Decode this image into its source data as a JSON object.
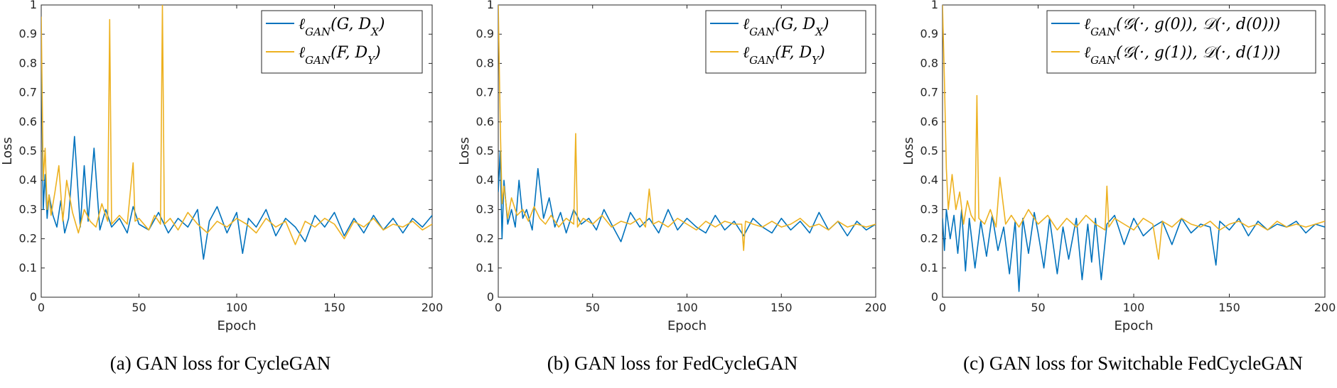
{
  "chart_data": [
    {
      "type": "line",
      "caption": "(a) GAN loss for CycleGAN",
      "xlabel": "Epoch",
      "ylabel": "Loss",
      "xlim": [
        0,
        200
      ],
      "ylim": [
        0,
        1
      ],
      "xticks": [
        0,
        50,
        100,
        150,
        200
      ],
      "yticks": [
        0,
        0.1,
        0.2,
        0.3,
        0.4,
        0.5,
        0.6,
        0.7,
        0.8,
        0.9,
        1
      ],
      "legend_position": "top-right",
      "series": [
        {
          "name": "ℓGAN(G, DX)",
          "color": "#0072BD",
          "x": [
            0,
            1,
            2,
            3,
            4,
            6,
            8,
            10,
            12,
            14,
            17,
            20,
            22,
            24,
            27,
            30,
            33,
            36,
            40,
            44,
            47,
            50,
            55,
            60,
            65,
            70,
            75,
            80,
            83,
            86,
            90,
            95,
            100,
            103,
            106,
            110,
            115,
            120,
            125,
            130,
            135,
            140,
            145,
            150,
            155,
            160,
            165,
            170,
            175,
            180,
            185,
            190,
            195,
            200
          ],
          "y": [
            0.88,
            0.3,
            0.42,
            0.27,
            0.35,
            0.28,
            0.24,
            0.33,
            0.22,
            0.27,
            0.55,
            0.24,
            0.45,
            0.26,
            0.51,
            0.23,
            0.3,
            0.24,
            0.27,
            0.22,
            0.31,
            0.25,
            0.23,
            0.29,
            0.22,
            0.27,
            0.24,
            0.3,
            0.13,
            0.26,
            0.31,
            0.22,
            0.29,
            0.15,
            0.27,
            0.24,
            0.3,
            0.21,
            0.27,
            0.24,
            0.19,
            0.28,
            0.24,
            0.29,
            0.21,
            0.27,
            0.22,
            0.28,
            0.23,
            0.27,
            0.22,
            0.27,
            0.24,
            0.28
          ]
        },
        {
          "name": "ℓGAN(F, DY)",
          "color": "#EDB120",
          "x": [
            0,
            1,
            2,
            3,
            4,
            5,
            7,
            9,
            11,
            13,
            16,
            19,
            22,
            25,
            28,
            31,
            34,
            35,
            36,
            40,
            44,
            47,
            48,
            50,
            55,
            58,
            61,
            62,
            63,
            66,
            70,
            75,
            80,
            85,
            90,
            95,
            100,
            105,
            110,
            115,
            120,
            125,
            130,
            135,
            140,
            145,
            150,
            155,
            160,
            165,
            170,
            175,
            180,
            185,
            190,
            195,
            200
          ],
          "y": [
            0.96,
            0.4,
            0.51,
            0.3,
            0.35,
            0.28,
            0.36,
            0.45,
            0.26,
            0.4,
            0.29,
            0.22,
            0.3,
            0.26,
            0.24,
            0.32,
            0.26,
            0.95,
            0.25,
            0.28,
            0.25,
            0.46,
            0.26,
            0.27,
            0.23,
            0.28,
            0.25,
            1.0,
            0.25,
            0.27,
            0.23,
            0.29,
            0.25,
            0.22,
            0.26,
            0.24,
            0.27,
            0.25,
            0.22,
            0.27,
            0.24,
            0.26,
            0.18,
            0.26,
            0.24,
            0.27,
            0.25,
            0.2,
            0.26,
            0.24,
            0.27,
            0.23,
            0.25,
            0.24,
            0.26,
            0.23,
            0.25
          ]
        }
      ]
    },
    {
      "type": "line",
      "caption": "(b) GAN loss for FedCycleGAN",
      "xlabel": "Epoch",
      "ylabel": "Loss",
      "xlim": [
        0,
        200
      ],
      "ylim": [
        0,
        1
      ],
      "xticks": [
        0,
        50,
        100,
        150,
        200
      ],
      "yticks": [
        0,
        0.1,
        0.2,
        0.3,
        0.4,
        0.5,
        0.6,
        0.7,
        0.8,
        0.9,
        1
      ],
      "legend_position": "top-right",
      "series": [
        {
          "name": "ℓGAN(G, DX)",
          "color": "#0072BD",
          "x": [
            0,
            1,
            2,
            3,
            5,
            7,
            9,
            11,
            13,
            15,
            18,
            21,
            24,
            27,
            30,
            33,
            36,
            40,
            44,
            48,
            52,
            56,
            60,
            65,
            70,
            75,
            80,
            85,
            90,
            95,
            100,
            105,
            110,
            115,
            120,
            125,
            130,
            135,
            140,
            145,
            150,
            155,
            160,
            165,
            170,
            175,
            180,
            185,
            190,
            195,
            200
          ],
          "y": [
            0.36,
            0.5,
            0.2,
            0.4,
            0.25,
            0.3,
            0.24,
            0.4,
            0.27,
            0.3,
            0.23,
            0.44,
            0.27,
            0.34,
            0.24,
            0.29,
            0.22,
            0.3,
            0.25,
            0.27,
            0.23,
            0.3,
            0.25,
            0.19,
            0.29,
            0.24,
            0.27,
            0.22,
            0.3,
            0.23,
            0.27,
            0.24,
            0.22,
            0.28,
            0.23,
            0.26,
            0.21,
            0.27,
            0.24,
            0.22,
            0.27,
            0.23,
            0.26,
            0.22,
            0.29,
            0.23,
            0.26,
            0.21,
            0.26,
            0.23,
            0.25
          ]
        },
        {
          "name": "ℓGAN(F, DY)",
          "color": "#EDB120",
          "x": [
            0,
            1,
            2,
            3,
            5,
            7,
            10,
            13,
            16,
            19,
            22,
            25,
            28,
            32,
            36,
            40,
            41,
            42,
            45,
            50,
            55,
            60,
            65,
            70,
            75,
            78,
            80,
            82,
            85,
            90,
            95,
            100,
            105,
            110,
            115,
            120,
            125,
            129,
            130,
            131,
            135,
            140,
            145,
            150,
            155,
            160,
            165,
            170,
            175,
            180,
            185,
            190,
            195,
            200
          ],
          "y": [
            1.0,
            0.6,
            0.32,
            0.38,
            0.27,
            0.34,
            0.28,
            0.3,
            0.26,
            0.31,
            0.27,
            0.25,
            0.28,
            0.24,
            0.27,
            0.25,
            0.56,
            0.24,
            0.27,
            0.25,
            0.28,
            0.24,
            0.26,
            0.25,
            0.27,
            0.24,
            0.37,
            0.25,
            0.26,
            0.24,
            0.27,
            0.25,
            0.23,
            0.26,
            0.24,
            0.26,
            0.25,
            0.25,
            0.16,
            0.26,
            0.25,
            0.24,
            0.26,
            0.24,
            0.25,
            0.27,
            0.24,
            0.25,
            0.23,
            0.26,
            0.24,
            0.25,
            0.24,
            0.25
          ]
        }
      ]
    },
    {
      "type": "line",
      "caption": "(c) GAN loss for Switchable FedCycleGAN",
      "xlabel": "Epoch",
      "ylabel": "Loss",
      "xlim": [
        0,
        200
      ],
      "ylim": [
        0,
        1
      ],
      "xticks": [
        0,
        50,
        100,
        150,
        200
      ],
      "yticks": [
        0,
        0.1,
        0.2,
        0.3,
        0.4,
        0.5,
        0.6,
        0.7,
        0.8,
        0.9,
        1
      ],
      "legend_position": "top-right",
      "series": [
        {
          "name": "ℓGAN(𝒢(·, g(0)), 𝒟(·, d(0)))",
          "color": "#0072BD",
          "x": [
            0,
            1,
            2,
            4,
            6,
            8,
            10,
            12,
            14,
            17,
            20,
            23,
            26,
            29,
            32,
            35,
            38,
            40,
            42,
            45,
            48,
            50,
            53,
            56,
            60,
            63,
            66,
            70,
            73,
            76,
            78,
            80,
            83,
            86,
            90,
            95,
            100,
            105,
            110,
            115,
            120,
            125,
            130,
            135,
            140,
            143,
            145,
            150,
            155,
            160,
            165,
            170,
            175,
            180,
            185,
            190,
            195,
            200
          ],
          "y": [
            0.27,
            0.16,
            0.3,
            0.2,
            0.28,
            0.15,
            0.3,
            0.09,
            0.27,
            0.1,
            0.26,
            0.14,
            0.28,
            0.16,
            0.24,
            0.08,
            0.26,
            0.02,
            0.27,
            0.15,
            0.29,
            0.22,
            0.1,
            0.27,
            0.08,
            0.24,
            0.13,
            0.27,
            0.06,
            0.25,
            0.12,
            0.27,
            0.06,
            0.25,
            0.28,
            0.18,
            0.27,
            0.21,
            0.24,
            0.26,
            0.18,
            0.27,
            0.22,
            0.25,
            0.24,
            0.11,
            0.26,
            0.23,
            0.27,
            0.21,
            0.26,
            0.23,
            0.25,
            0.24,
            0.26,
            0.22,
            0.25,
            0.24
          ]
        },
        {
          "name": "ℓGAN(𝒢(·, g(1)), 𝒟(·, d(1)))",
          "color": "#EDB120",
          "x": [
            0,
            1,
            2,
            3,
            5,
            7,
            9,
            11,
            13,
            15,
            17,
            18,
            19,
            22,
            25,
            28,
            30,
            33,
            36,
            40,
            45,
            50,
            55,
            60,
            65,
            70,
            75,
            80,
            85,
            86,
            87,
            90,
            95,
            100,
            105,
            110,
            113,
            115,
            120,
            125,
            130,
            135,
            140,
            145,
            150,
            155,
            160,
            165,
            170,
            175,
            180,
            185,
            190,
            195,
            200
          ],
          "y": [
            1.0,
            0.74,
            0.44,
            0.3,
            0.42,
            0.3,
            0.36,
            0.25,
            0.33,
            0.28,
            0.26,
            0.69,
            0.27,
            0.25,
            0.3,
            0.24,
            0.41,
            0.25,
            0.28,
            0.24,
            0.3,
            0.25,
            0.28,
            0.23,
            0.27,
            0.24,
            0.28,
            0.25,
            0.23,
            0.38,
            0.24,
            0.27,
            0.25,
            0.23,
            0.27,
            0.25,
            0.13,
            0.26,
            0.24,
            0.27,
            0.25,
            0.24,
            0.26,
            0.23,
            0.25,
            0.26,
            0.24,
            0.25,
            0.23,
            0.26,
            0.24,
            0.25,
            0.24,
            0.25,
            0.26
          ]
        }
      ]
    }
  ]
}
